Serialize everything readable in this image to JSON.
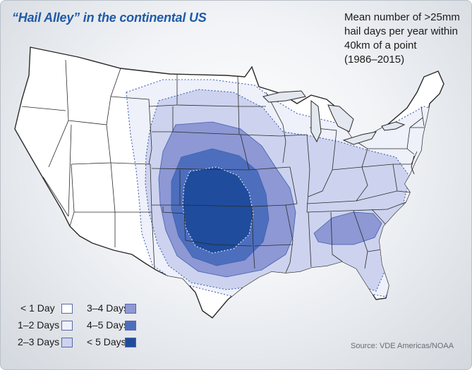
{
  "title": "“Hail Alley” in the continental US",
  "note": {
    "lines": [
      "Mean number of >25mm",
      "hail days per year within",
      "40km of a point",
      "(1986–2015)"
    ]
  },
  "legend": [
    {
      "label": "< 1 Day",
      "color": "#ffffff"
    },
    {
      "label": "1–2 Days",
      "color": "#eef0fa"
    },
    {
      "label": "2–3 Days",
      "color": "#cdd3ee"
    },
    {
      "label": "3–4 Days",
      "color": "#8d98d4"
    },
    {
      "label": "4–5 Days",
      "color": "#4d6ebd"
    },
    {
      "label": "< 5 Days",
      "color": "#1f4c9c"
    }
  ],
  "source": "Source: VDE Americas/NOAA",
  "colors": {
    "title": "#1f5aa6",
    "land": "#ffffff",
    "border": "#2a2a2a",
    "zone_outline": "#3f5fb0"
  }
}
